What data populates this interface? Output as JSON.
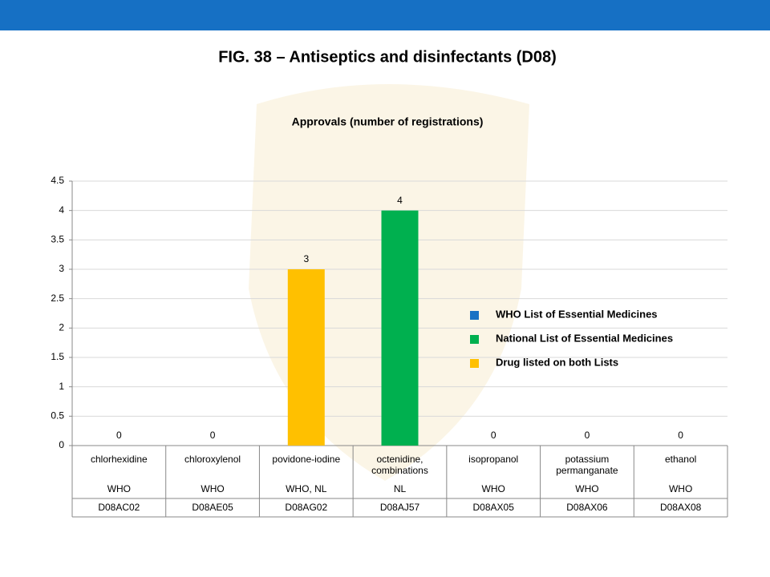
{
  "chart_data": {
    "type": "bar",
    "title": "FIG. 38 – Antiseptics and disinfectants (D08)",
    "subtitle": "Approvals (number of registrations)",
    "categories": [
      "chlorhexidine",
      "chloroxylenol",
      "povidone-iodine",
      "octenidine, combinations",
      "isopropanol",
      "potassium permanganate",
      "ethanol"
    ],
    "lists": [
      "WHO",
      "WHO",
      "WHO, NL",
      "NL",
      "WHO",
      "WHO",
      "WHO"
    ],
    "atc_codes": [
      "D08AC02",
      "D08AE05",
      "D08AG02",
      "D08AJ57",
      "D08AX05",
      "D08AX06",
      "D08AX08"
    ],
    "series": [
      {
        "name": "WHO List of Essential Medicines",
        "color": "#1a72c4",
        "values": [
          0,
          0,
          null,
          null,
          0,
          0,
          0
        ]
      },
      {
        "name": "National List of Essential Medicines",
        "color": "#00b04f",
        "values": [
          null,
          null,
          null,
          4,
          null,
          null,
          null
        ]
      },
      {
        "name": "Drug listed on both Lists",
        "color": "#ffc000",
        "values": [
          null,
          null,
          3,
          null,
          null,
          null,
          null
        ]
      }
    ],
    "ylim": [
      0,
      4.5
    ],
    "yticks": [
      0,
      0.5,
      1,
      1.5,
      2,
      2.5,
      3,
      3.5,
      4,
      4.5
    ],
    "grid": true
  }
}
